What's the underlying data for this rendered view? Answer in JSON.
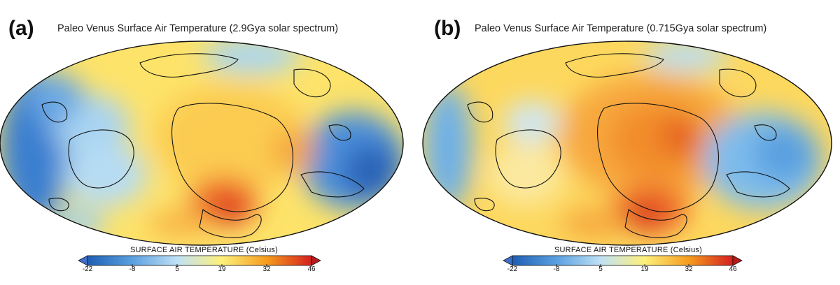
{
  "panels": [
    {
      "letter": "(a)",
      "title": "Paleo Venus Surface Air Temperature (2.9Gya solar spectrum)"
    },
    {
      "letter": "(b)",
      "title": "Paleo Venus Surface Air Temperature (0.715Gya solar spectrum)"
    }
  ],
  "colorbar": {
    "title": "SURFACE AIR TEMPERATURE (Celsius)",
    "ticks": [
      "-22",
      "-8",
      "5",
      "19",
      "32",
      "46"
    ],
    "colors": [
      "#1f5fb4",
      "#5aa0e0",
      "#bfe1f6",
      "#fdf07a",
      "#f59c1e",
      "#d42020"
    ],
    "under_color": "#3f6fc8",
    "over_color": "#b71c1c"
  }
}
